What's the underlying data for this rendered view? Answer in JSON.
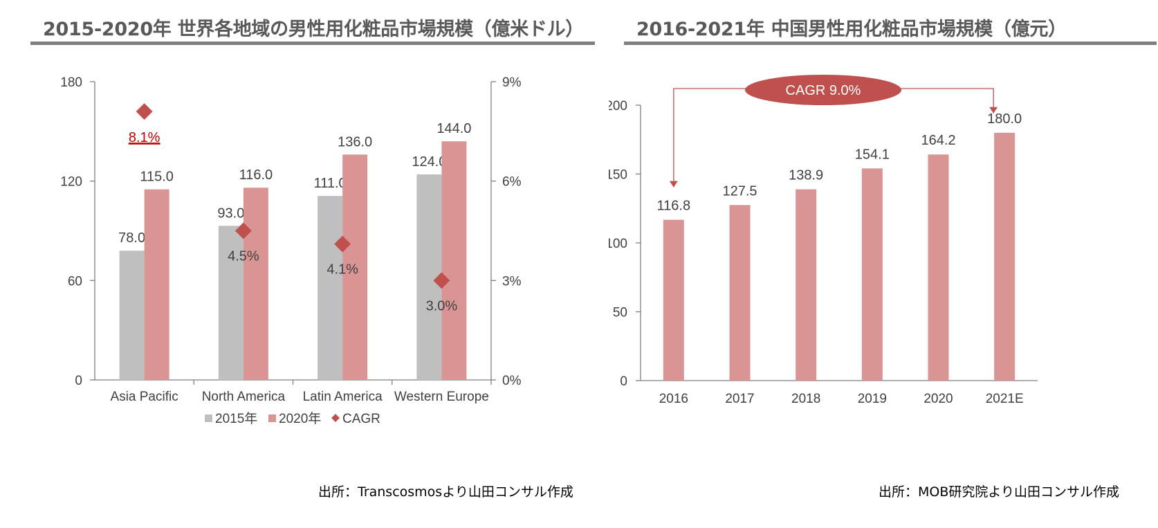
{
  "left": {
    "title": "2015-2020年 世界各地域の男性用化粧品市場規模（億米ドル）",
    "source": "出所：Transcosmosより山田コンサル作成",
    "chart_data": {
      "type": "bar",
      "categories": [
        "Asia Pacific",
        "North America",
        "Latin America",
        "Western Europe"
      ],
      "series": [
        {
          "name": "2015年",
          "values": [
            78.0,
            93.0,
            111.0,
            124.0
          ],
          "color": "#bfbfbf"
        },
        {
          "name": "2020年",
          "values": [
            115.0,
            116.0,
            136.0,
            144.0
          ],
          "color": "#d99594"
        }
      ],
      "cagr": {
        "name": "CAGR",
        "values": [
          8.1,
          4.5,
          4.1,
          3.0
        ],
        "labels": [
          "8.1%",
          "4.5%",
          "4.1%",
          "3.0%"
        ],
        "color": "#c0504d",
        "highlight_color": "#c00000"
      },
      "value_labels": [
        [
          "78.0",
          "93.0",
          "111.0",
          "124.0"
        ],
        [
          "115.0",
          "116.0",
          "136.0",
          "144.0"
        ]
      ],
      "ylim": [
        0,
        180
      ],
      "yticks": [
        "0",
        "60",
        "120",
        "180"
      ],
      "ylim_right": [
        0,
        9
      ],
      "yticks_right": [
        "0%",
        "3%",
        "6%",
        "9%"
      ],
      "legend_placement": "bottom",
      "grid": false
    }
  },
  "right": {
    "title": "2016-2021年 中国男性用化粧品市場規模（億元）",
    "source": "出所：MOB研究院より山田コンサル作成",
    "chart_data": {
      "type": "bar",
      "categories": [
        "2016",
        "2017",
        "2018",
        "2019",
        "2020",
        "2021E"
      ],
      "series": [
        {
          "values": [
            116.8,
            127.5,
            138.9,
            154.1,
            164.2,
            180.0
          ],
          "color": "#d99594"
        }
      ],
      "value_labels": [
        "116.8",
        "127.5",
        "138.9",
        "154.1",
        "164.2",
        "180.0"
      ],
      "ylim": [
        0,
        200
      ],
      "yticks": [
        "0",
        "50",
        "100",
        "150",
        "200"
      ],
      "annotation": {
        "text": "CAGR 9.0%",
        "color": "#c0504d"
      },
      "grid": false
    }
  }
}
